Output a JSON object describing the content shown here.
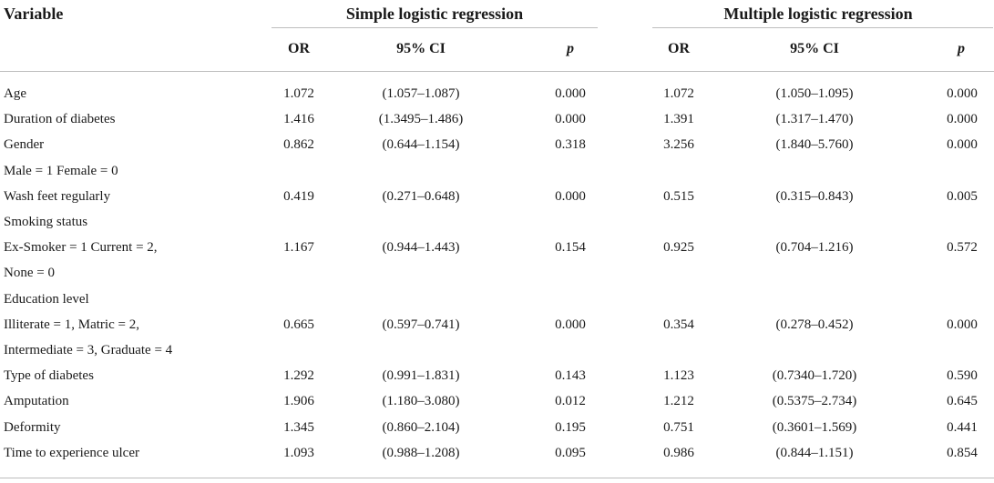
{
  "header": {
    "variable": "Variable",
    "group1": "Simple logistic regression",
    "group2": "Multiple logistic regression",
    "or": "OR",
    "ci": "95% CI",
    "p": "p"
  },
  "rows": [
    {
      "label": "Age",
      "or1": "1.072",
      "ci1": "(1.057–1.087)",
      "p1": "0.000",
      "or2": "1.072",
      "ci2": "(1.050–1.095)",
      "p2": "0.000"
    },
    {
      "label": "Duration of diabetes",
      "or1": "1.416",
      "ci1": "(1.3495–1.486)",
      "p1": "0.000",
      "or2": "1.391",
      "ci2": "(1.317–1.470)",
      "p2": "0.000"
    },
    {
      "label": "Gender",
      "or1": "0.862",
      "ci1": "(0.644–1.154)",
      "p1": "0.318",
      "or2": "3.256",
      "ci2": "(1.840–5.760)",
      "p2": "0.000"
    },
    {
      "label": "Male = 1 Female = 0",
      "or1": "",
      "ci1": "",
      "p1": "",
      "or2": "",
      "ci2": "",
      "p2": ""
    },
    {
      "label": "Wash feet regularly",
      "or1": "0.419",
      "ci1": "(0.271–0.648)",
      "p1": "0.000",
      "or2": "0.515",
      "ci2": "(0.315–0.843)",
      "p2": "0.005"
    },
    {
      "label": "Smoking status",
      "or1": "",
      "ci1": "",
      "p1": "",
      "or2": "",
      "ci2": "",
      "p2": ""
    },
    {
      "label": "Ex-Smoker = 1 Current = 2,",
      "or1": "1.167",
      "ci1": "(0.944–1.443)",
      "p1": "0.154",
      "or2": "0.925",
      "ci2": "(0.704–1.216)",
      "p2": "0.572"
    },
    {
      "label": "None = 0",
      "or1": "",
      "ci1": "",
      "p1": "",
      "or2": "",
      "ci2": "",
      "p2": ""
    },
    {
      "label": "Education level",
      "or1": "",
      "ci1": "",
      "p1": "",
      "or2": "",
      "ci2": "",
      "p2": ""
    },
    {
      "label": "Illiterate = 1, Matric = 2,",
      "or1": "0.665",
      "ci1": "(0.597–0.741)",
      "p1": "0.000",
      "or2": "0.354",
      "ci2": "(0.278–0.452)",
      "p2": "0.000"
    },
    {
      "label": "Intermediate = 3, Graduate = 4",
      "or1": "",
      "ci1": "",
      "p1": "",
      "or2": "",
      "ci2": "",
      "p2": ""
    },
    {
      "label": "Type of diabetes",
      "or1": "1.292",
      "ci1": "(0.991–1.831)",
      "p1": "0.143",
      "or2": "1.123",
      "ci2": "(0.7340–1.720)",
      "p2": "0.590"
    },
    {
      "label": "Amputation",
      "or1": "1.906",
      "ci1": "(1.180–3.080)",
      "p1": "0.012",
      "or2": "1.212",
      "ci2": "(0.5375–2.734)",
      "p2": "0.645"
    },
    {
      "label": "Deformity",
      "or1": "1.345",
      "ci1": "(0.860–2.104)",
      "p1": "0.195",
      "or2": "0.751",
      "ci2": "(0.3601–1.569)",
      "p2": "0.441"
    },
    {
      "label": "Time to experience ulcer",
      "or1": "1.093",
      "ci1": "(0.988–1.208)",
      "p1": "0.095",
      "or2": "0.986",
      "ci2": "(0.844–1.151)",
      "p2": "0.854"
    }
  ]
}
